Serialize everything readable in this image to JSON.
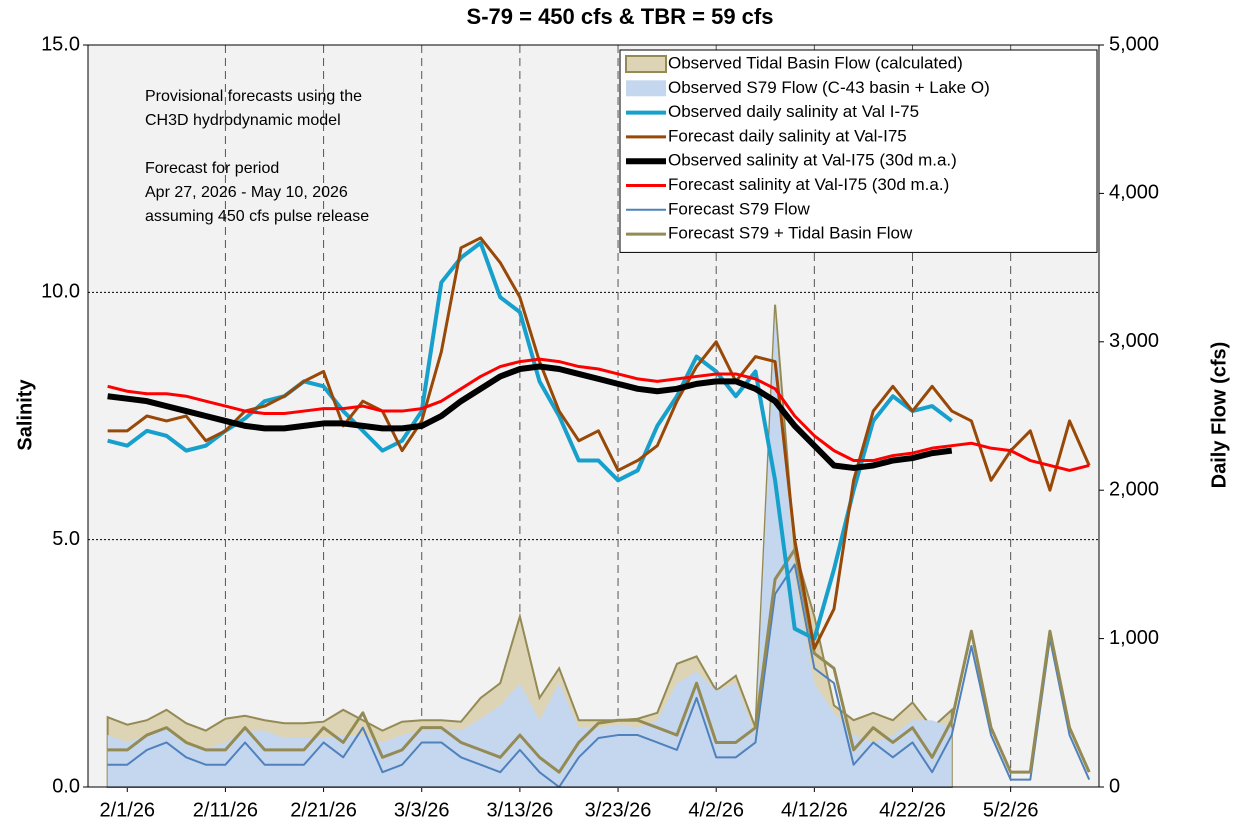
{
  "chart_data": {
    "type": "line",
    "title": "S-79 = 450 cfs & TBR =  59 cfs",
    "ylabel": "Salinity",
    "y2label": "Daily Flow (cfs)",
    "annotations": [
      [
        "Provisional forecasts using the",
        "CH3D hydrodynamic model"
      ],
      [
        "Forecast for period",
        "Apr 27, 2026 - May 10, 2026",
        "assuming 450 cfs pulse release"
      ]
    ],
    "x": [
      "2026-01-30",
      "2026-02-01",
      "2026-02-03",
      "2026-02-05",
      "2026-02-07",
      "2026-02-09",
      "2026-02-11",
      "2026-02-13",
      "2026-02-15",
      "2026-02-17",
      "2026-02-19",
      "2026-02-21",
      "2026-02-23",
      "2026-02-25",
      "2026-02-27",
      "2026-03-01",
      "2026-03-03",
      "2026-03-05",
      "2026-03-07",
      "2026-03-09",
      "2026-03-11",
      "2026-03-13",
      "2026-03-15",
      "2026-03-17",
      "2026-03-19",
      "2026-03-21",
      "2026-03-23",
      "2026-03-25",
      "2026-03-27",
      "2026-03-29",
      "2026-03-31",
      "2026-04-02",
      "2026-04-04",
      "2026-04-06",
      "2026-04-08",
      "2026-04-10",
      "2026-04-12",
      "2026-04-14",
      "2026-04-16",
      "2026-04-18",
      "2026-04-20",
      "2026-04-22",
      "2026-04-24",
      "2026-04-26",
      "2026-04-28",
      "2026-04-30",
      "2026-05-02",
      "2026-05-04",
      "2026-05-06",
      "2026-05-08",
      "2026-05-10"
    ],
    "xlim": [
      "2026-01-28",
      "2026-05-11"
    ],
    "xticks": [
      {
        "value": "2026-02-01",
        "label": "2/1/26"
      },
      {
        "value": "2026-02-11",
        "label": "2/11/26"
      },
      {
        "value": "2026-02-21",
        "label": "2/21/26"
      },
      {
        "value": "2026-03-03",
        "label": "3/3/26"
      },
      {
        "value": "2026-03-13",
        "label": "3/13/26"
      },
      {
        "value": "2026-03-23",
        "label": "3/23/26"
      },
      {
        "value": "2026-04-02",
        "label": "4/2/26"
      },
      {
        "value": "2026-04-12",
        "label": "4/12/26"
      },
      {
        "value": "2026-04-22",
        "label": "4/22/26"
      },
      {
        "value": "2026-05-02",
        "label": "5/2/26"
      }
    ],
    "ylim": [
      0,
      15
    ],
    "yticks": [
      {
        "value": 0,
        "label": "0.0"
      },
      {
        "value": 5,
        "label": "5.0"
      },
      {
        "value": 10,
        "label": "10.0"
      },
      {
        "value": 15,
        "label": "15.0"
      }
    ],
    "y2lim": [
      0,
      5000
    ],
    "y2ticks": [
      0,
      {
        "value": 1000,
        "label": "1,000"
      },
      {
        "value": 2000,
        "label": "2,000"
      },
      {
        "value": 3000,
        "label": "3,000"
      },
      {
        "value": 4000,
        "label": "4,000"
      },
      {
        "value": 5000,
        "label": "5,000"
      }
    ],
    "grid": true,
    "legend": "upper right",
    "series": [
      {
        "name": "Observed Tidal Basin Flow (calculated)",
        "kind": "area",
        "axis": "y2",
        "color": "#ddd4b6",
        "values": [
          470,
          420,
          450,
          520,
          430,
          380,
          460,
          480,
          450,
          430,
          430,
          440,
          520,
          450,
          380,
          440,
          450,
          450,
          440,
          600,
          700,
          1150,
          600,
          800,
          450,
          450,
          450,
          460,
          500,
          830,
          880,
          650,
          750,
          400,
          3250,
          1600,
          1150,
          550,
          450,
          500,
          450,
          570,
          400,
          520,
          null,
          null,
          null,
          null,
          null,
          null,
          null
        ]
      },
      {
        "name": "Observed S79 Flow (C-43 basin + Lake O)",
        "kind": "area",
        "axis": "y2",
        "color": "#c5d7ef",
        "values": [
          350,
          300,
          350,
          400,
          280,
          260,
          300,
          380,
          380,
          330,
          330,
          330,
          350,
          350,
          300,
          350,
          380,
          400,
          380,
          460,
          550,
          700,
          450,
          700,
          400,
          400,
          420,
          400,
          450,
          700,
          780,
          650,
          700,
          350,
          3200,
          1400,
          700,
          500,
          350,
          300,
          350,
          450,
          450,
          400,
          null,
          null,
          null,
          null,
          null,
          null,
          null
        ]
      },
      {
        "name": "Observed daily salinity at Val I-75",
        "kind": "line",
        "color": "#18a0cc",
        "values": [
          7.0,
          6.9,
          7.2,
          7.1,
          6.8,
          6.9,
          7.2,
          7.45,
          7.8,
          7.9,
          8.2,
          8.1,
          7.6,
          7.2,
          6.8,
          7.0,
          7.6,
          10.2,
          10.7,
          11.0,
          9.9,
          9.6,
          8.2,
          7.5,
          6.6,
          6.6,
          6.2,
          6.4,
          7.3,
          7.9,
          8.7,
          8.4,
          7.9,
          8.4,
          6.2,
          3.2,
          3.0,
          4.4,
          6.0,
          7.4,
          7.9,
          7.6,
          7.7,
          7.4,
          null,
          null,
          null,
          null,
          null,
          null,
          null
        ]
      },
      {
        "name": "Forecast daily salinity at Val-I75",
        "kind": "line",
        "color": "#984807",
        "values": [
          7.2,
          7.2,
          7.5,
          7.4,
          7.5,
          7.0,
          7.2,
          7.6,
          7.7,
          7.9,
          8.2,
          8.4,
          7.3,
          7.8,
          7.6,
          6.8,
          7.4,
          8.8,
          10.9,
          11.1,
          10.6,
          9.9,
          8.6,
          7.6,
          7.0,
          7.2,
          6.4,
          6.6,
          6.9,
          7.8,
          8.5,
          9.0,
          8.2,
          8.7,
          8.6,
          5.0,
          2.8,
          3.6,
          6.2,
          7.6,
          8.1,
          7.6,
          8.1,
          7.6,
          7.4,
          6.2,
          6.8,
          7.2,
          6.0,
          7.4,
          6.5
        ]
      },
      {
        "name": "Observed salinity at Val-I75 (30d m.a.)",
        "kind": "line",
        "color": "#000000",
        "values": [
          7.9,
          7.85,
          7.8,
          7.7,
          7.6,
          7.5,
          7.4,
          7.3,
          7.25,
          7.25,
          7.3,
          7.35,
          7.35,
          7.3,
          7.25,
          7.25,
          7.3,
          7.5,
          7.8,
          8.05,
          8.3,
          8.45,
          8.5,
          8.45,
          8.35,
          8.25,
          8.15,
          8.05,
          8.0,
          8.05,
          8.15,
          8.2,
          8.2,
          8.05,
          7.8,
          7.3,
          6.9,
          6.5,
          6.45,
          6.5,
          6.6,
          6.65,
          6.75,
          6.8,
          null,
          null,
          null,
          null,
          null,
          null,
          null
        ]
      },
      {
        "name": "Forecast salinity at Val-I75 (30d m.a.)",
        "kind": "line",
        "color": "#ff0000",
        "values": [
          8.1,
          8.0,
          7.95,
          7.95,
          7.9,
          7.8,
          7.7,
          7.6,
          7.55,
          7.55,
          7.6,
          7.65,
          7.65,
          7.7,
          7.6,
          7.6,
          7.65,
          7.8,
          8.05,
          8.3,
          8.5,
          8.6,
          8.65,
          8.6,
          8.5,
          8.45,
          8.35,
          8.25,
          8.2,
          8.25,
          8.3,
          8.35,
          8.35,
          8.25,
          8.05,
          7.5,
          7.1,
          6.8,
          6.6,
          6.6,
          6.7,
          6.75,
          6.85,
          6.9,
          6.95,
          6.85,
          6.8,
          6.6,
          6.5,
          6.4,
          6.5
        ]
      },
      {
        "name": "Forecast S79 Flow",
        "kind": "line",
        "axis": "y2",
        "color": "#4f81bd",
        "values": [
          150,
          150,
          250,
          300,
          200,
          150,
          150,
          300,
          150,
          150,
          150,
          300,
          200,
          400,
          100,
          150,
          300,
          300,
          200,
          150,
          100,
          250,
          100,
          0,
          200,
          330,
          350,
          350,
          300,
          250,
          600,
          200,
          200,
          300,
          1300,
          1500,
          800,
          700,
          150,
          300,
          200,
          300,
          100,
          350,
          950,
          350,
          50,
          50,
          1000,
          350,
          50
        ]
      },
      {
        "name": "Forecast S79 + Tidal Basin Flow",
        "kind": "line",
        "axis": "y2",
        "color": "#948a54",
        "values": [
          250,
          250,
          350,
          400,
          300,
          250,
          250,
          400,
          250,
          250,
          250,
          400,
          300,
          500,
          200,
          250,
          400,
          400,
          300,
          250,
          200,
          350,
          200,
          100,
          300,
          430,
          450,
          450,
          400,
          350,
          700,
          300,
          300,
          400,
          1400,
          1600,
          900,
          800,
          250,
          400,
          300,
          400,
          200,
          450,
          1050,
          400,
          100,
          100,
          1050,
          400,
          100
        ]
      }
    ]
  }
}
